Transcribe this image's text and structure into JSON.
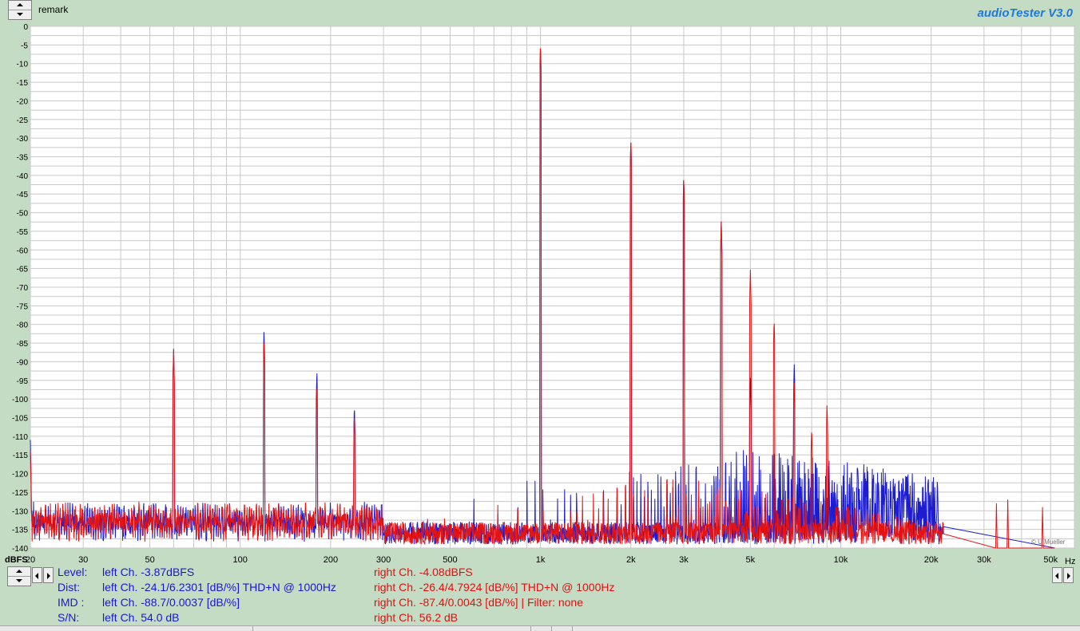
{
  "header": {
    "remark_label": "remark",
    "brand": "audioTester  V3.0"
  },
  "watermark": "© U.Mueller",
  "chart_data": {
    "type": "line",
    "title": "",
    "xscale": "log",
    "xlim": [
      20,
      60000
    ],
    "ylim": [
      -140,
      0
    ],
    "ylabel": "dBFS",
    "xunit": "Hz",
    "grid": true,
    "y_ticks": [
      0,
      -5,
      -10,
      -15,
      -20,
      -25,
      -30,
      -35,
      -40,
      -45,
      -50,
      -55,
      -60,
      -65,
      -70,
      -75,
      -80,
      -85,
      -90,
      -95,
      -100,
      -105,
      -110,
      -115,
      -120,
      -125,
      -130,
      -135,
      -140
    ],
    "x_tick_labels": [
      {
        "v": 20,
        "label": "20"
      },
      {
        "v": 30,
        "label": "30"
      },
      {
        "v": 50,
        "label": "50"
      },
      {
        "v": 100,
        "label": "100"
      },
      {
        "v": 200,
        "label": "200"
      },
      {
        "v": 300,
        "label": "300"
      },
      {
        "v": 500,
        "label": "500"
      },
      {
        "v": 1000,
        "label": "1k"
      },
      {
        "v": 2000,
        "label": "2k"
      },
      {
        "v": 3000,
        "label": "3k"
      },
      {
        "v": 5000,
        "label": "5k"
      },
      {
        "v": 10000,
        "label": "10k"
      },
      {
        "v": 20000,
        "label": "20k"
      },
      {
        "v": 30000,
        "label": "30k"
      },
      {
        "v": 50000,
        "label": "50k"
      }
    ],
    "fundamental_hz": 1000,
    "noise_floor_db": -133,
    "series": [
      {
        "name": "left Ch.",
        "color": "#1c1cd0",
        "peaks": [
          [
            20,
            -111
          ],
          [
            60,
            -86
          ],
          [
            120,
            -81
          ],
          [
            180,
            -92
          ],
          [
            240,
            -101
          ],
          [
            1000,
            -5
          ],
          [
            2000,
            -30
          ],
          [
            3000,
            -40
          ],
          [
            4000,
            -52
          ],
          [
            5000,
            -94
          ],
          [
            7000,
            -90
          ],
          [
            19500,
            -122
          ],
          [
            21000,
            -122
          ]
        ]
      },
      {
        "name": "right Ch.",
        "color": "#e41414",
        "peaks": [
          [
            20,
            -114
          ],
          [
            60,
            -86
          ],
          [
            120,
            -84
          ],
          [
            180,
            -96
          ],
          [
            240,
            -103
          ],
          [
            1000,
            -4
          ],
          [
            2000,
            -30
          ],
          [
            3000,
            -40
          ],
          [
            4000,
            -52
          ],
          [
            5000,
            -65
          ],
          [
            6000,
            -78
          ],
          [
            7000,
            -95
          ],
          [
            8000,
            -107
          ],
          [
            9000,
            -101
          ],
          [
            33000,
            -128
          ],
          [
            36000,
            -127
          ],
          [
            47000,
            -129
          ]
        ]
      }
    ]
  },
  "stats": {
    "labels": [
      "Level:",
      "Dist:",
      "IMD  :",
      "S/N:"
    ],
    "left": [
      "left Ch. -3.87dBFS",
      "left Ch. -24.1/6.2301 [dB/%] THD+N  @ 1000Hz",
      "left Ch. -88.7/0.0037 [dB/%]",
      "left Ch. 54.0 dB"
    ],
    "right": [
      "right Ch. -4.08dBFS",
      "right Ch. -26.4/4.7924 [dB/%] THD+N  @ 1000Hz",
      "right Ch. -87.4/0.0043 [dB/%] |   Filter: none",
      "right Ch. 56.2 dB"
    ]
  }
}
